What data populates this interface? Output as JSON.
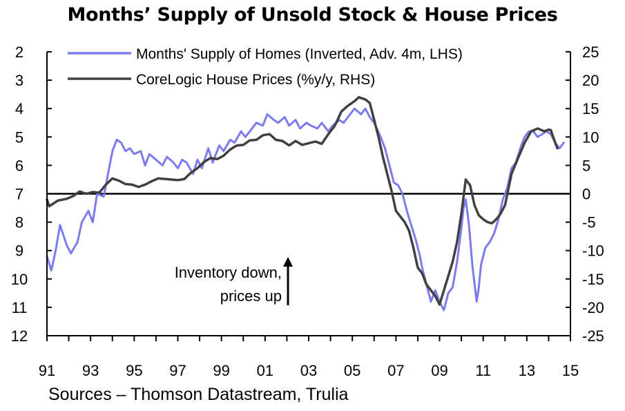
{
  "chart_data": {
    "type": "line",
    "title": "Months’ Supply of Unsold Stock & House Prices",
    "source": "Sources – Thomson Datastream, Trulia",
    "x_tick_labels": [
      "91",
      "93",
      "95",
      "97",
      "99",
      "01",
      "03",
      "05",
      "07",
      "09",
      "11",
      "13",
      "15"
    ],
    "x_range": [
      1991,
      2015
    ],
    "left_axis": {
      "label": "LHS",
      "range": [
        2,
        12
      ],
      "inverted": true,
      "ticks": [
        "2",
        "3",
        "4",
        "5",
        "6",
        "7",
        "8",
        "9",
        "10",
        "11",
        "12"
      ]
    },
    "right_axis": {
      "label": "RHS",
      "range": [
        -25,
        25
      ],
      "ticks": [
        "25",
        "20",
        "15",
        "10",
        "5",
        "0",
        "-5",
        "-10",
        "-15",
        "-20",
        "-25"
      ]
    },
    "colors": {
      "months_supply": "#7b7bef",
      "house_prices": "#404040",
      "zero_line": "#000000"
    },
    "annotation": {
      "line1": "Inventory down,",
      "line2": "prices up"
    },
    "series": [
      {
        "name": "Months' Supply of Homes (Inverted, Adv. 4m, LHS)",
        "axis": "left",
        "x": [
          1991.0,
          1991.2,
          1991.4,
          1991.6,
          1991.9,
          1992.1,
          1992.4,
          1992.6,
          1992.9,
          1993.1,
          1993.3,
          1993.6,
          1993.8,
          1994.0,
          1994.2,
          1994.4,
          1994.6,
          1994.8,
          1995.0,
          1995.3,
          1995.5,
          1995.7,
          1996.0,
          1996.3,
          1996.5,
          1996.8,
          1997.0,
          1997.2,
          1997.4,
          1997.7,
          1997.9,
          1998.1,
          1998.4,
          1998.6,
          1998.9,
          1999.1,
          1999.4,
          1999.6,
          1999.9,
          2000.1,
          2000.4,
          2000.6,
          2000.9,
          2001.1,
          2001.4,
          2001.6,
          2001.9,
          2002.1,
          2002.4,
          2002.6,
          2002.9,
          2003.1,
          2003.4,
          2003.6,
          2003.9,
          2004.1,
          2004.4,
          2004.6,
          2004.9,
          2005.1,
          2005.4,
          2005.6,
          2005.8,
          2006.0,
          2006.3,
          2006.5,
          2006.7,
          2006.9,
          2007.1,
          2007.3,
          2007.5,
          2007.7,
          2007.9,
          2008.1,
          2008.2,
          2008.4,
          2008.6,
          2008.8,
          2009.0,
          2009.2,
          2009.4,
          2009.6,
          2009.8,
          2010.0,
          2010.1,
          2010.2,
          2010.35,
          2010.5,
          2010.7,
          2010.8,
          2010.9,
          2011.1,
          2011.3,
          2011.5,
          2011.7,
          2011.9,
          2012.1,
          2012.3,
          2012.5,
          2012.7,
          2012.9,
          2013.1,
          2013.3,
          2013.5,
          2013.7,
          2013.9,
          2014.1,
          2014.3,
          2014.5,
          2014.7
        ],
        "values": [
          9.2,
          9.7,
          9.0,
          8.1,
          8.8,
          9.1,
          8.7,
          8.0,
          7.6,
          8.0,
          7.0,
          7.1,
          6.3,
          5.5,
          5.1,
          5.2,
          5.5,
          5.4,
          5.6,
          5.5,
          6.0,
          5.6,
          5.8,
          6.0,
          5.7,
          5.9,
          6.1,
          5.8,
          5.9,
          6.3,
          5.8,
          6.1,
          5.4,
          5.9,
          5.3,
          5.5,
          5.1,
          5.2,
          4.8,
          5.0,
          4.7,
          4.5,
          4.6,
          4.2,
          4.4,
          4.5,
          4.3,
          4.6,
          4.4,
          4.7,
          4.5,
          4.6,
          4.7,
          4.5,
          4.8,
          4.6,
          4.4,
          4.5,
          4.2,
          4.0,
          4.2,
          4.0,
          4.3,
          4.5,
          5.0,
          5.4,
          6.0,
          6.6,
          6.7,
          7.0,
          7.6,
          8.1,
          8.6,
          9.2,
          9.6,
          10.2,
          10.8,
          10.4,
          10.8,
          11.1,
          10.5,
          10.3,
          9.4,
          8.2,
          7.5,
          7.2,
          8.1,
          9.5,
          10.8,
          10.3,
          9.5,
          8.9,
          8.7,
          8.4,
          7.9,
          7.2,
          6.8,
          6.1,
          5.9,
          5.4,
          5.0,
          4.8,
          4.8,
          5.0,
          4.9,
          4.8,
          4.9,
          5.2,
          5.4,
          5.2
        ]
      },
      {
        "name": "CoreLogic House Prices (%y/y, RHS)",
        "axis": "right",
        "x": [
          1991.0,
          1991.1,
          1991.5,
          1991.9,
          1992.2,
          1992.5,
          1992.8,
          1993.1,
          1993.4,
          1993.7,
          1994.0,
          1994.3,
          1994.6,
          1994.9,
          1995.2,
          1995.5,
          1995.8,
          1996.1,
          1996.4,
          1996.7,
          1997.0,
          1997.3,
          1997.6,
          1997.9,
          1998.2,
          1998.5,
          1998.8,
          1999.1,
          1999.4,
          1999.7,
          2000.0,
          2000.3,
          2000.6,
          2000.9,
          2001.2,
          2001.5,
          2001.8,
          2002.1,
          2002.4,
          2002.7,
          2003.0,
          2003.3,
          2003.6,
          2003.9,
          2004.2,
          2004.5,
          2004.8,
          2005.1,
          2005.3,
          2005.6,
          2005.8,
          2006.0,
          2006.2,
          2006.4,
          2006.6,
          2006.8,
          2007.0,
          2007.2,
          2007.4,
          2007.6,
          2007.8,
          2008.0,
          2008.2,
          2008.4,
          2008.6,
          2008.8,
          2009.0,
          2009.2,
          2009.4,
          2009.6,
          2009.8,
          2010.0,
          2010.2,
          2010.4,
          2010.6,
          2010.8,
          2011.0,
          2011.2,
          2011.4,
          2011.6,
          2011.8,
          2012.0,
          2012.3,
          2012.6,
          2012.9,
          2013.2,
          2013.5,
          2013.8,
          2014.0,
          2014.1,
          2014.3,
          2014.4
        ],
        "values": [
          -1.0,
          -2.2,
          -1.2,
          -0.9,
          -0.4,
          0.4,
          0.0,
          0.3,
          0.2,
          1.6,
          2.7,
          2.3,
          1.7,
          1.6,
          1.2,
          1.6,
          2.2,
          2.7,
          2.6,
          2.5,
          2.4,
          2.6,
          3.7,
          4.5,
          5.6,
          6.3,
          6.1,
          6.7,
          7.8,
          8.5,
          8.6,
          9.4,
          9.5,
          10.3,
          10.5,
          9.5,
          9.3,
          8.5,
          9.3,
          8.6,
          8.9,
          9.2,
          8.8,
          10.5,
          12.0,
          14.5,
          15.5,
          16.3,
          17.0,
          16.6,
          16.0,
          13.0,
          10.0,
          6.5,
          3.5,
          0.5,
          -3.0,
          -4.0,
          -5.0,
          -6.5,
          -9.5,
          -13.0,
          -14.0,
          -16.0,
          -17.0,
          -18.0,
          -19.5,
          -17.0,
          -14.5,
          -12.0,
          -8.5,
          -3.5,
          2.5,
          1.5,
          -2.0,
          -3.8,
          -4.5,
          -5.0,
          -5.2,
          -4.5,
          -3.5,
          -2.0,
          3.5,
          6.3,
          9.0,
          11.0,
          11.5,
          11.0,
          11.3,
          11.2,
          9.0,
          8.0
        ]
      }
    ]
  }
}
